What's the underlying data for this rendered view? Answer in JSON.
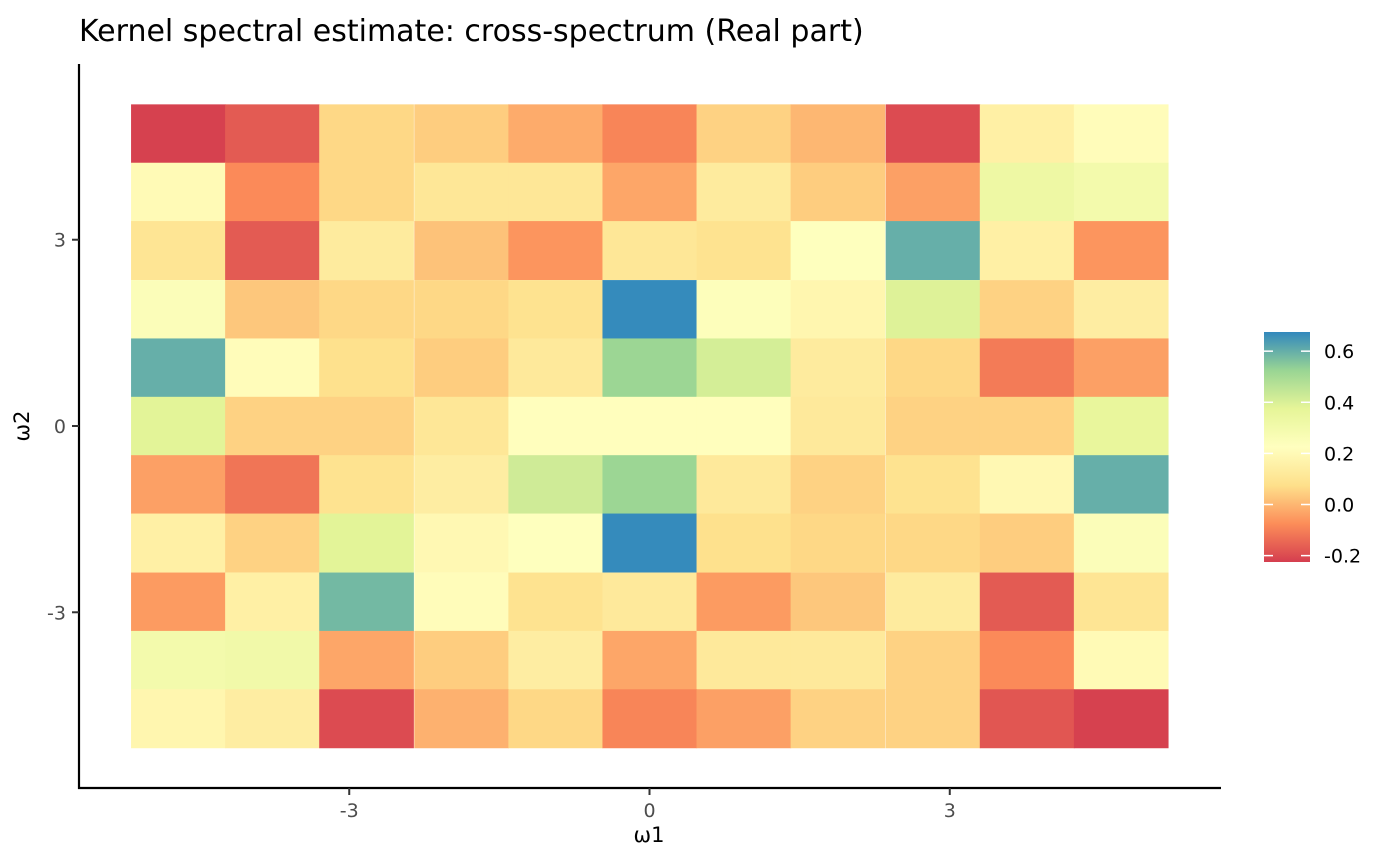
{
  "chart_data": {
    "type": "heatmap",
    "title": "Kernel spectral estimate: cross-spectrum (Real part)",
    "xlabel": "ω1",
    "ylabel": "ω2",
    "x_ticks": [
      {
        "value": -3,
        "label": "-3"
      },
      {
        "value": 0,
        "label": "0"
      },
      {
        "value": 3,
        "label": "3"
      }
    ],
    "y_ticks": [
      {
        "value": 3,
        "label": "3"
      },
      {
        "value": 0,
        "label": "0"
      },
      {
        "value": -3,
        "label": "-3"
      }
    ],
    "x": [
      -4.71,
      -3.77,
      -2.83,
      -1.88,
      -0.94,
      0,
      0.94,
      1.88,
      2.83,
      3.77,
      4.71
    ],
    "y": [
      4.71,
      3.77,
      2.83,
      1.88,
      0.94,
      0,
      -0.94,
      -1.88,
      -2.83,
      -3.77,
      -4.71
    ],
    "xlim": [
      -5.7,
      5.7
    ],
    "ylim": [
      -5.83,
      5.83
    ],
    "z": [
      [
        -0.22,
        -0.17,
        0.06,
        0.04,
        -0.02,
        -0.09,
        0.05,
        0.0,
        -0.2,
        0.15,
        0.21
      ],
      [
        0.2,
        -0.08,
        0.06,
        0.11,
        0.11,
        -0.03,
        0.13,
        0.04,
        -0.04,
        0.33,
        0.3
      ],
      [
        0.1,
        -0.17,
        0.13,
        0.02,
        -0.06,
        0.11,
        0.09,
        0.23,
        0.6,
        0.15,
        -0.06
      ],
      [
        0.25,
        0.03,
        0.06,
        0.06,
        0.09,
        0.67,
        0.24,
        0.18,
        0.39,
        0.05,
        0.14
      ],
      [
        0.6,
        0.21,
        0.08,
        0.04,
        0.12,
        0.52,
        0.41,
        0.13,
        0.06,
        -0.11,
        -0.04
      ],
      [
        0.38,
        0.05,
        0.05,
        0.11,
        0.22,
        0.22,
        0.22,
        0.12,
        0.05,
        0.05,
        0.36
      ],
      [
        -0.04,
        -0.12,
        0.09,
        0.14,
        0.42,
        0.52,
        0.12,
        0.05,
        0.09,
        0.19,
        0.6
      ],
      [
        0.15,
        0.05,
        0.38,
        0.19,
        0.23,
        0.67,
        0.08,
        0.06,
        0.06,
        0.04,
        0.25
      ],
      [
        -0.05,
        0.15,
        0.58,
        0.21,
        0.09,
        0.12,
        -0.05,
        0.03,
        0.13,
        -0.17,
        0.1
      ],
      [
        0.3,
        0.31,
        -0.03,
        0.04,
        0.14,
        -0.03,
        0.12,
        0.12,
        0.05,
        -0.08,
        0.2
      ],
      [
        0.18,
        0.14,
        -0.2,
        -0.01,
        0.06,
        -0.09,
        -0.04,
        0.05,
        0.05,
        -0.18,
        -0.22
      ]
    ],
    "legend": {
      "placement": "right",
      "ticks": [
        {
          "value": 0.6,
          "label": "0.6"
        },
        {
          "value": 0.4,
          "label": "0.4"
        },
        {
          "value": 0.2,
          "label": "0.2"
        },
        {
          "value": 0.0,
          "label": "0.0"
        },
        {
          "value": -0.2,
          "label": "-0.2"
        }
      ],
      "range": [
        -0.225,
        0.675
      ]
    },
    "colorscale": [
      {
        "value": -0.225,
        "color": "#d53e4f"
      },
      {
        "value": -0.075,
        "color": "#fc8d59"
      },
      {
        "value": 0.075,
        "color": "#fee08b"
      },
      {
        "value": 0.225,
        "color": "#ffffbf"
      },
      {
        "value": 0.375,
        "color": "#e6f598"
      },
      {
        "value": 0.525,
        "color": "#99d594"
      },
      {
        "value": 0.675,
        "color": "#3288bd"
      }
    ],
    "grid": false
  }
}
